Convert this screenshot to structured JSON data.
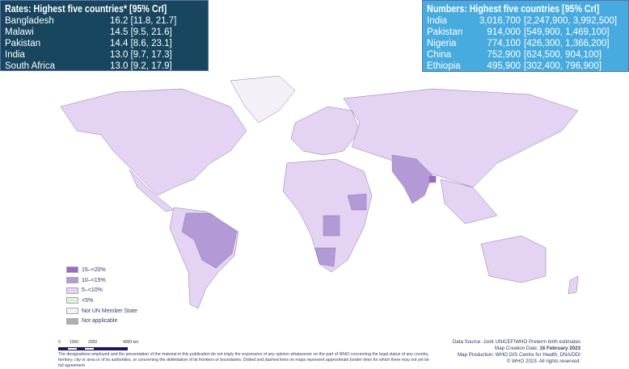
{
  "rates_box": {
    "title": "Rates: Highest five countries* [95% CrI]",
    "rows": [
      {
        "country": "Bangladesh",
        "value": "16.2 [11.8, 21.7]"
      },
      {
        "country": "Malawi",
        "value": "14.5 [9.5, 21.6]"
      },
      {
        "country": "Pakistan",
        "value": "14.4 [8.6, 23.1]"
      },
      {
        "country": "India",
        "value": "13.0 [9.7, 17.3]"
      },
      {
        "country": "South Africa",
        "value": "13.0 [9.2, 17.9]"
      }
    ]
  },
  "numbers_box": {
    "title": "Numbers: Highest five countries [95% CrI]",
    "rows": [
      {
        "country": "India",
        "value": "3,016,700",
        "interval": "[2,247,900, 3,992,500]"
      },
      {
        "country": "Pakistan",
        "value": "914,000",
        "interval": "[549,900, 1,469,100]"
      },
      {
        "country": "Nigeria",
        "value": "774,100",
        "interval": "[426,300, 1,366,200]"
      },
      {
        "country": "China",
        "value": "752,900",
        "interval": "[624,500, 904,100]"
      },
      {
        "country": "Ethiopia",
        "value": "495,900",
        "interval": "[302,400, 796,900]"
      }
    ]
  },
  "legend": [
    {
      "label": "15–<20%",
      "color": "#9a6ac6"
    },
    {
      "label": "10–<15%",
      "color": "#b39ad6"
    },
    {
      "label": "5–<10%",
      "color": "#e4d3f2"
    },
    {
      "label": "<5%",
      "color": "#d8f5da"
    },
    {
      "label": "Not UN Member State",
      "color": "#f3f1f7"
    },
    {
      "label": "Not applicable",
      "color": "#b0b0b0"
    }
  ],
  "scale": {
    "labels": [
      "0",
      "1000",
      "2000",
      "4000 km"
    ]
  },
  "credits": {
    "source": "Data Source: Joint UNICEF/WHO Preterm birth estimates",
    "date_label": "Map Creation Date: ",
    "date": "16 February 2023",
    "production": "Map Production: WHO GIS Centre for Health, DNA/DDI",
    "copyright": "© WHO 2023. All rights reserved."
  },
  "disclaimer": "The designations employed and the presentation of the material in this publication do not imply the expression of any opinion whatsoever on the part of WHO concerning the legal status of any country, territory, city or area or of its authorities, or concerning the delimitation of its frontiers or boundaries. Dotted and dashed lines on maps represent approximate border lines for which there may not yet be full agreement."
}
